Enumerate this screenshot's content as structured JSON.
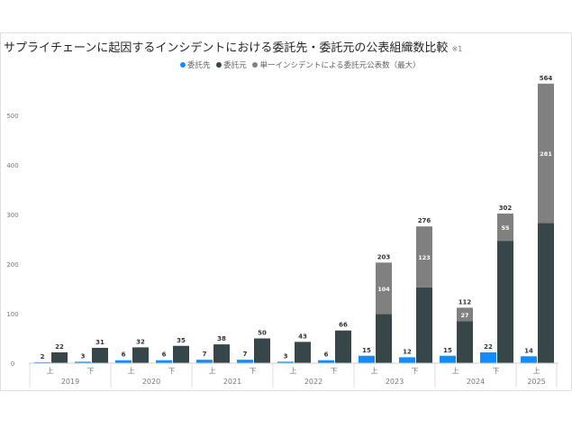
{
  "chart_data": {
    "type": "bar",
    "title": "サプライチェーンに起因するインシデントにおける委託先・委託元の公表組織数比較",
    "title_note": "※1",
    "categories": [
      "上",
      "下",
      "上",
      "下",
      "上",
      "下",
      "上",
      "下",
      "上",
      "下",
      "上",
      "下",
      "上"
    ],
    "years": [
      "2019",
      "2020",
      "2021",
      "2022",
      "2023",
      "2024",
      "2025"
    ],
    "year_spans": [
      2,
      2,
      2,
      2,
      2,
      2,
      1
    ],
    "series": [
      {
        "name": "委託先",
        "color": "#118DFF",
        "values": [
          2,
          3,
          6,
          6,
          7,
          7,
          3,
          6,
          15,
          12,
          15,
          22,
          14
        ]
      },
      {
        "name": "委託元",
        "color": "#374649",
        "values": [
          22,
          31,
          32,
          35,
          38,
          50,
          43,
          66,
          99,
          153,
          85,
          247,
          283
        ],
        "totals": [
          22,
          31,
          32,
          35,
          38,
          50,
          43,
          66,
          203,
          276,
          112,
          302,
          564
        ]
      },
      {
        "name": "単一インシデントによる委託元公表数（最大）",
        "color": "#808080",
        "values": [
          null,
          null,
          null,
          null,
          null,
          null,
          null,
          null,
          104,
          123,
          27,
          55,
          281
        ]
      }
    ],
    "ylim": [
      0,
      570
    ],
    "yticks": [
      0,
      100,
      200,
      300,
      400,
      500
    ],
    "grid": false,
    "legend_position": "top-center"
  }
}
